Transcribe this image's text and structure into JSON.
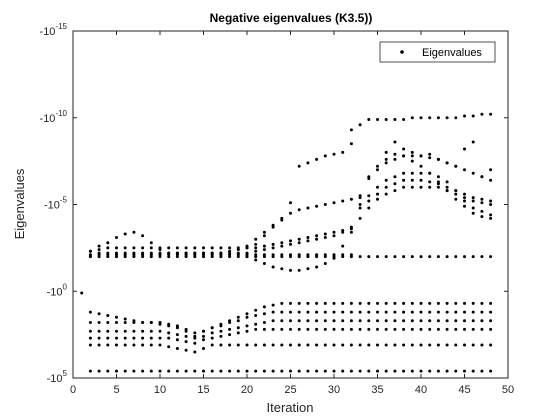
{
  "chart_data": {
    "type": "scatter",
    "title": "Negative eigenvalues (K3.5))",
    "xlabel": "Iteration",
    "ylabel": "Eigenvalues",
    "xlim": [
      0,
      50
    ],
    "ylim_exponent": [
      -15,
      5
    ],
    "y_scale": "negative-log",
    "x_ticks": [
      0,
      5,
      10,
      15,
      20,
      25,
      30,
      35,
      40,
      45,
      50
    ],
    "y_tick_exponents": [
      -15,
      -10,
      -5,
      0,
      5
    ],
    "y_tick_labels": [
      "-10",
      "-10",
      "-10",
      "-10",
      "-10"
    ],
    "y_tick_superscripts": [
      "-15",
      "-10",
      "-5",
      "0",
      "5"
    ],
    "grid": false,
    "legend": {
      "entries": [
        "Eigenvalues"
      ],
      "location": "top-right"
    },
    "marker": "dot",
    "color": "#000000",
    "series": [
      {
        "x": [
          2,
          3,
          4,
          5,
          6,
          7,
          8,
          9,
          10,
          11,
          12,
          13,
          14,
          15,
          16,
          17,
          18,
          19,
          20,
          21,
          22,
          23,
          24,
          25,
          26,
          27,
          28,
          29,
          30,
          31,
          32,
          33,
          34,
          35,
          36,
          37,
          38,
          39,
          40,
          41,
          42,
          43,
          44,
          45,
          46,
          47,
          48
        ],
        "y_exp": [
          4.6,
          4.6,
          4.6,
          4.6,
          4.6,
          4.6,
          4.6,
          4.6,
          4.6,
          4.6,
          4.6,
          4.6,
          4.6,
          4.6,
          4.6,
          4.6,
          4.6,
          4.6,
          4.6,
          4.6,
          4.6,
          4.6,
          4.6,
          4.6,
          4.6,
          4.6,
          4.6,
          4.6,
          4.6,
          4.6,
          4.6,
          4.6,
          4.6,
          4.6,
          4.6,
          4.6,
          4.6,
          4.6,
          4.6,
          4.6,
          4.6,
          4.6,
          4.6,
          4.6,
          4.6,
          4.6,
          4.6
        ]
      },
      {
        "x": [
          2,
          3,
          4,
          5,
          6,
          7,
          8,
          9,
          10,
          11,
          12,
          13,
          14,
          15,
          16,
          17,
          18,
          19,
          20,
          21,
          22,
          23,
          24,
          25,
          26,
          27,
          28,
          29,
          30,
          31,
          32,
          33,
          34,
          35,
          36,
          37,
          38,
          39,
          40,
          41,
          42,
          43,
          44,
          45,
          46,
          47,
          48
        ],
        "y_exp": [
          3.1,
          3.1,
          3.1,
          3.1,
          3.1,
          3.1,
          3.1,
          3.1,
          3.1,
          3.2,
          3.3,
          3.4,
          3.5,
          3.3,
          3.1,
          3.1,
          3.1,
          3.1,
          3.1,
          3.1,
          3.1,
          3.1,
          3.1,
          3.1,
          3.1,
          3.1,
          3.1,
          3.1,
          3.1,
          3.1,
          3.1,
          3.1,
          3.1,
          3.1,
          3.1,
          3.1,
          3.1,
          3.1,
          3.1,
          3.1,
          3.1,
          3.1,
          3.1,
          3.1,
          3.1,
          3.1,
          3.1
        ]
      },
      {
        "x": [
          2,
          3,
          4,
          5,
          6,
          7,
          8,
          9,
          10,
          11,
          12,
          13,
          14,
          15,
          16,
          17,
          18,
          19,
          20,
          21,
          22,
          23,
          24,
          25,
          26,
          27,
          28,
          29,
          30,
          31,
          32,
          33,
          34,
          35,
          36,
          37,
          38,
          39,
          40,
          41,
          42,
          43,
          44,
          45,
          46,
          47,
          48
        ],
        "y_exp": [
          2.7,
          2.7,
          2.7,
          2.7,
          2.7,
          2.7,
          2.7,
          2.7,
          2.7,
          2.7,
          2.8,
          2.9,
          3.0,
          2.8,
          2.7,
          2.6,
          2.5,
          2.4,
          2.3,
          2.2,
          2.2,
          2.2,
          2.2,
          2.2,
          2.2,
          2.2,
          2.2,
          2.2,
          2.2,
          2.2,
          2.2,
          2.2,
          2.2,
          2.2,
          2.2,
          2.2,
          2.2,
          2.2,
          2.2,
          2.2,
          2.2,
          2.2,
          2.2,
          2.2,
          2.2,
          2.2,
          2.2
        ]
      },
      {
        "x": [
          2,
          3,
          4,
          5,
          6,
          7,
          8,
          9,
          10,
          11,
          12,
          13,
          14,
          15,
          16,
          17,
          18,
          19,
          20,
          21,
          22,
          23,
          24,
          25,
          26,
          27,
          28,
          29,
          30,
          31,
          32,
          33,
          34,
          35,
          36,
          37,
          38,
          39,
          40,
          41,
          42,
          43,
          44,
          45,
          46,
          47,
          48
        ],
        "y_exp": [
          2.3,
          2.3,
          2.3,
          2.3,
          2.3,
          2.3,
          2.3,
          2.3,
          2.3,
          2.4,
          2.5,
          2.6,
          2.7,
          2.6,
          2.4,
          2.3,
          2.2,
          2.1,
          2.0,
          1.9,
          1.8,
          1.7,
          1.7,
          1.7,
          1.7,
          1.7,
          1.7,
          1.7,
          1.7,
          1.7,
          1.7,
          1.7,
          1.7,
          1.7,
          1.7,
          1.7,
          1.7,
          1.7,
          1.7,
          1.7,
          1.7,
          1.7,
          1.7,
          1.7,
          1.7,
          1.7,
          1.7
        ]
      },
      {
        "x": [
          2,
          3,
          4,
          5,
          6,
          7,
          8,
          9,
          10,
          11,
          12,
          13,
          14,
          15,
          16,
          17,
          18,
          19,
          20,
          21,
          22,
          23,
          24,
          25,
          26,
          27,
          28,
          29,
          30,
          31,
          32,
          33,
          34,
          35,
          36,
          37,
          38,
          39,
          40,
          41,
          42,
          43,
          44,
          45,
          46,
          47,
          48
        ],
        "y_exp": [
          1.8,
          1.8,
          1.8,
          1.8,
          1.8,
          1.8,
          1.8,
          1.8,
          1.8,
          1.9,
          2.0,
          2.2,
          2.4,
          2.3,
          2.1,
          2.0,
          1.8,
          1.7,
          1.5,
          1.4,
          1.3,
          1.2,
          1.2,
          1.2,
          1.2,
          1.2,
          1.2,
          1.2,
          1.2,
          1.2,
          1.2,
          1.2,
          1.2,
          1.2,
          1.2,
          1.2,
          1.2,
          1.2,
          1.2,
          1.2,
          1.2,
          1.2,
          1.2,
          1.2,
          1.2,
          1.2,
          1.2
        ]
      },
      {
        "x": [
          2,
          3,
          4,
          5,
          6,
          7,
          8,
          9,
          10,
          11,
          12,
          13,
          14,
          15,
          16,
          17,
          18,
          19,
          20,
          21,
          22,
          23,
          24,
          25,
          26,
          27,
          28,
          29,
          30,
          31,
          32,
          33,
          34,
          35,
          36,
          37,
          38,
          39,
          40,
          41,
          42,
          43,
          44,
          45,
          46,
          47,
          48
        ],
        "y_exp": [
          1.2,
          1.3,
          1.4,
          1.5,
          1.6,
          1.7,
          1.8,
          1.8,
          1.9,
          2.0,
          2.1,
          2.3,
          2.6,
          2.3,
          2.1,
          1.9,
          1.7,
          1.5,
          1.3,
          1.1,
          0.9,
          0.8,
          0.7,
          0.7,
          0.7,
          0.7,
          0.7,
          0.7,
          0.7,
          0.7,
          0.7,
          0.7,
          0.7,
          0.7,
          0.7,
          0.7,
          0.7,
          0.7,
          0.7,
          0.7,
          0.7,
          0.7,
          0.7,
          0.7,
          0.7,
          0.7,
          0.7
        ]
      },
      {
        "x": [
          1
        ],
        "y_exp": [
          0.1
        ]
      },
      {
        "x": [
          2,
          3,
          4,
          5,
          6,
          7,
          8,
          9,
          10,
          11,
          12,
          13,
          14,
          15,
          16,
          17,
          18,
          19,
          20,
          21,
          22,
          23,
          24,
          25,
          26,
          27,
          28,
          29,
          30,
          31,
          32,
          33,
          34,
          35,
          36,
          37,
          38,
          39,
          40,
          41,
          42,
          43,
          44,
          45,
          46,
          47,
          48
        ],
        "y_exp": [
          -2.0,
          -2.0,
          -2.0,
          -2.0,
          -2.0,
          -2.0,
          -2.0,
          -2.0,
          -2.0,
          -2.0,
          -2.0,
          -2.0,
          -2.0,
          -2.0,
          -2.0,
          -2.0,
          -2.0,
          -2.0,
          -2.0,
          -2.0,
          -2.0,
          -2.0,
          -2.0,
          -2.0,
          -2.0,
          -2.0,
          -2.0,
          -2.0,
          -2.0,
          -2.0,
          -2.0,
          -2.0,
          -2.0,
          -2.0,
          -2.0,
          -2.0,
          -2.0,
          -2.0,
          -2.0,
          -2.0,
          -2.0,
          -2.0,
          -2.0,
          -2.0,
          -2.0,
          -2.0,
          -2.0
        ]
      },
      {
        "x": [
          2,
          3,
          4,
          5,
          6,
          7,
          8,
          9,
          10,
          11,
          12,
          13,
          14,
          15,
          16,
          17,
          18,
          19,
          20,
          21,
          22,
          23,
          24,
          25,
          26,
          27,
          28,
          29,
          30,
          31,
          32,
          33,
          34,
          35,
          36,
          37,
          38,
          39,
          40,
          41,
          42,
          43,
          44,
          45,
          46,
          47,
          48
        ],
        "y_exp": [
          -2.3,
          -2.4,
          -2.5,
          -2.5,
          -2.5,
          -2.5,
          -2.5,
          -2.5,
          -2.5,
          -2.5,
          -2.5,
          -2.5,
          -2.5,
          -2.5,
          -2.5,
          -2.5,
          -2.5,
          -2.5,
          -2.5,
          -2.5,
          -2.6,
          -2.7,
          -2.8,
          -2.9,
          -3.0,
          -3.1,
          -3.2,
          -3.3,
          -3.4,
          -3.5,
          -3.6,
          -4.2,
          -4.8,
          -5.3,
          -5.6,
          -5.8,
          -6.0,
          -6.0,
          -6.0,
          -6.0,
          -6.0,
          -5.8,
          -5.6,
          -5.4,
          -5.2,
          -5.1,
          -5.0
        ]
      },
      {
        "x": [
          2,
          3,
          4,
          5,
          6,
          7,
          8,
          9,
          10,
          11,
          12,
          13,
          14,
          15,
          16,
          17,
          18,
          19,
          20,
          21,
          22,
          23,
          24,
          25,
          26,
          27,
          28,
          29,
          30,
          31,
          32,
          33,
          34,
          35,
          36,
          37,
          38,
          39,
          40,
          41,
          42,
          43,
          44,
          45,
          46,
          47,
          48
        ],
        "y_exp": [
          -2.1,
          -2.2,
          -2.2,
          -2.2,
          -2.2,
          -2.2,
          -2.2,
          -2.2,
          -2.2,
          -2.2,
          -2.2,
          -2.2,
          -2.2,
          -2.2,
          -2.2,
          -2.2,
          -2.2,
          -2.2,
          -2.2,
          -2.3,
          -2.4,
          -2.5,
          -2.6,
          -2.7,
          -2.8,
          -2.9,
          -3.0,
          -3.1,
          -3.2,
          -3.4,
          -3.7,
          -5.0,
          -5.5,
          -6.0,
          -6.4,
          -6.6,
          -6.8,
          -6.8,
          -6.8,
          -6.8,
          -6.6,
          -6.3,
          -5.8,
          -5.2,
          -4.8,
          -4.6,
          -4.4
        ]
      },
      {
        "x": [
          2,
          3,
          4,
          5,
          6,
          7,
          8,
          9,
          10,
          11,
          12,
          13,
          14,
          15,
          16,
          17,
          18,
          19,
          20,
          21,
          22,
          23,
          24,
          25,
          26,
          27,
          28,
          29,
          30,
          31,
          32,
          33,
          34,
          35,
          36,
          37,
          38,
          39,
          40,
          41,
          42,
          43,
          44,
          45,
          46,
          47,
          48
        ],
        "y_exp": [
          -2.0,
          -2.1,
          -2.1,
          -2.1,
          -2.1,
          -2.1,
          -2.1,
          -2.1,
          -2.1,
          -2.1,
          -2.1,
          -2.1,
          -2.1,
          -2.1,
          -2.1,
          -2.1,
          -2.1,
          -2.1,
          -2.1,
          -2.1,
          -2.1,
          -2.1,
          -2.1,
          -2.1,
          -2.1,
          -2.1,
          -2.1,
          -2.1,
          -2.1,
          -2.1,
          -2.1,
          -4.8,
          -5.2,
          -5.6,
          -6.0,
          -6.2,
          -6.4,
          -6.4,
          -6.4,
          -6.3,
          -6.2,
          -6.0,
          -5.8,
          -5.6,
          -5.4,
          -5.3,
          -5.2
        ]
      },
      {
        "x": [
          2,
          3,
          4,
          5,
          6,
          7,
          8,
          9,
          10,
          11,
          12,
          13,
          14,
          15,
          16,
          17,
          18,
          19,
          20,
          21,
          22,
          23,
          24,
          25,
          26,
          27,
          28,
          29,
          30,
          31,
          32,
          33,
          34,
          35,
          36,
          37,
          38,
          39,
          40,
          41,
          42,
          43,
          44,
          45,
          46,
          47,
          48
        ],
        "y_exp": [
          -2.3,
          -2.6,
          -2.8,
          -3.1,
          -3.3,
          -3.4,
          -3.2,
          -2.8,
          -2.4,
          -2.2,
          -2.2,
          -2.2,
          -2.2,
          -2.2,
          -2.2,
          -2.2,
          -2.3,
          -2.4,
          -2.5,
          -2.7,
          -3.2,
          -3.7,
          -4.1,
          -4.5,
          -4.7,
          -4.8,
          -4.9,
          -5.0,
          -5.1,
          -5.2,
          -5.3,
          -5.5,
          -6.5,
          -7.2,
          -7.6,
          -7.9,
          -7.8,
          -7.5,
          -7.2,
          -6.8,
          -6.3,
          -5.8,
          -5.3,
          -4.9,
          -4.5,
          -4.3,
          -4.2
        ]
      },
      {
        "x": [
          20,
          21,
          22,
          23,
          24,
          25,
          26,
          27,
          28,
          29,
          30,
          31,
          32,
          33,
          34,
          35,
          36,
          37,
          38,
          39,
          40,
          41,
          42,
          43,
          44,
          45,
          46,
          47,
          48
        ],
        "y_exp": [
          -2.0,
          -1.8,
          -1.6,
          -1.4,
          -1.3,
          -1.2,
          -1.2,
          -1.3,
          -1.4,
          -1.6,
          -1.9,
          -2.6,
          -3.4,
          -5.4,
          -6.6,
          -7.0,
          -7.4,
          -7.6,
          -7.8,
          -7.8,
          -7.8,
          -7.7,
          -7.6,
          -7.4,
          -7.2,
          -7.0,
          -6.8,
          -6.6,
          -6.4
        ]
      },
      {
        "x": [
          20,
          21,
          22,
          23,
          24,
          25,
          26,
          27,
          28,
          29,
          30,
          31,
          32
        ],
        "y_exp": [
          -2.6,
          -3.0,
          -3.4,
          -3.8,
          -4.2,
          -5.1,
          -7.2,
          -7.4,
          -7.6,
          -7.8,
          -7.9,
          -8.0,
          -8.5
        ]
      },
      {
        "x": [
          36,
          37,
          38,
          39,
          40,
          41,
          42,
          43,
          44,
          45,
          46,
          47,
          48
        ],
        "y_exp": [
          -8.0,
          -8.6,
          -8.2,
          -8.0,
          -7.8,
          -7.9,
          -7.6,
          -7.4,
          -7.2,
          -8.2,
          -8.6,
          -6.6,
          -7.0
        ]
      },
      {
        "x": [
          32,
          33,
          34,
          35,
          36,
          37,
          38,
          39,
          40,
          41,
          42,
          43,
          44,
          45,
          46,
          47,
          48
        ],
        "y_exp": [
          -9.3,
          -9.6,
          -9.9,
          -9.9,
          -9.9,
          -9.9,
          -9.9,
          -10.0,
          -10.0,
          -10.0,
          -10.0,
          -10.0,
          -10.0,
          -10.1,
          -10.1,
          -10.2,
          -10.2
        ]
      }
    ]
  }
}
